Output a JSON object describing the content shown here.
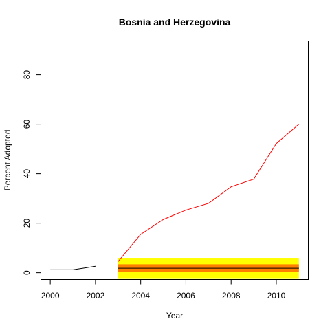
{
  "chart_data": {
    "type": "line",
    "title": "Bosnia and Herzegovina",
    "xlabel": "Year",
    "ylabel": "Percent Adopted",
    "xlim": [
      1999.6,
      2011.4
    ],
    "ylim": [
      -2.6,
      93.5
    ],
    "x_ticks": [
      2000,
      2002,
      2004,
      2006,
      2008,
      2010
    ],
    "y_ticks": [
      0,
      20,
      40,
      60,
      80
    ],
    "grid": false,
    "legend": "none",
    "bands": [
      {
        "x_start": 2003,
        "x_end": 2011,
        "y_low": -2.5,
        "y_high": 6.0,
        "color": "#ffff00"
      },
      {
        "x_start": 2003,
        "x_end": 2011,
        "y_low": 0.4,
        "y_high": 3.4,
        "color": "#ff8000"
      }
    ],
    "series": [
      {
        "color": "#000000",
        "x": [
          2000,
          2001,
          2002
        ],
        "y": [
          1.2,
          1.2,
          2.6
        ]
      },
      {
        "color": "#ff0000",
        "x": [
          2003,
          2004,
          2005,
          2006,
          2007,
          2008,
          2009,
          2010,
          2011
        ],
        "y": [
          4.5,
          15.5,
          21.5,
          25.3,
          28.0,
          34.7,
          37.8,
          52.2,
          60.0
        ]
      },
      {
        "color": "#000000",
        "x": [
          2003,
          2011
        ],
        "y": [
          1.8,
          1.8
        ]
      }
    ]
  }
}
